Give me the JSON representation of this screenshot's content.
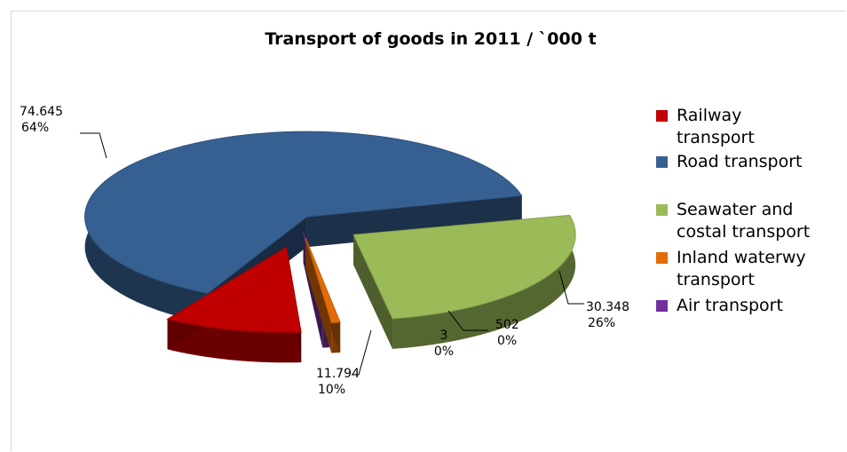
{
  "chart_data": {
    "type": "pie",
    "title": "Transport of goods in 2011 / `000 t",
    "colors": {
      "railway": "#c00000",
      "road": "#376092",
      "seawater": "#9bbb59",
      "inland": "#e36c09",
      "air": "#7030a0"
    },
    "slices": [
      {
        "key": "road",
        "legend": [
          "Road transport"
        ],
        "value": 74645,
        "value_label": "74.645",
        "percent_label": "64%"
      },
      {
        "key": "seawater",
        "legend": [
          "Seawater and",
          "costal transport"
        ],
        "value": 30348,
        "value_label": "30.348",
        "percent_label": "26%"
      },
      {
        "key": "inland",
        "legend": [
          "Inland waterwy",
          "transport"
        ],
        "value": 502,
        "value_label": "502",
        "percent_label": "0%"
      },
      {
        "key": "air",
        "legend": [
          "Air transport"
        ],
        "value": 3,
        "value_label": "3",
        "percent_label": "0%"
      },
      {
        "key": "railway",
        "legend": [
          "Railway",
          "transport"
        ],
        "value": 11794,
        "value_label": "11.794",
        "percent_label": "10%"
      }
    ],
    "legend_order": [
      "railway",
      "road",
      "seawater",
      "inland",
      "air"
    ],
    "legend_position": "right",
    "style": "3d exploded pie"
  }
}
